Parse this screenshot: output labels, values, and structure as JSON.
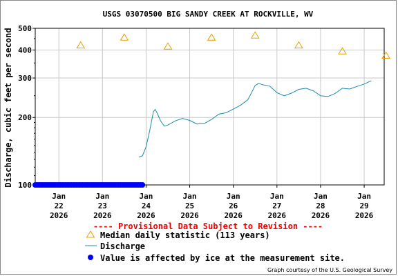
{
  "chart_data": {
    "type": "line",
    "title": "USGS 03070500 BIG SANDY CREEK AT ROCKVILLE, WV",
    "ylabel": "Discharge, cubic feet per second",
    "xlabel": "",
    "y_scale": "log",
    "ylim": [
      100,
      500
    ],
    "y_ticks": [
      {
        "value": 100,
        "label": "100"
      },
      {
        "value": 200,
        "label": "200"
      },
      {
        "value": 300,
        "label": "300"
      },
      {
        "value": 400,
        "label": "400"
      },
      {
        "value": 500,
        "label": "500"
      }
    ],
    "xlim": [
      "2026-01-21T11:00",
      "2026-01-29T11:00"
    ],
    "x_ticks": [
      {
        "value": "2026-01-22",
        "label1": "Jan",
        "label2": "22",
        "label3": "2026"
      },
      {
        "value": "2026-01-23",
        "label1": "Jan",
        "label2": "23",
        "label3": "2026"
      },
      {
        "value": "2026-01-24",
        "label1": "Jan",
        "label2": "24",
        "label3": "2026"
      },
      {
        "value": "2026-01-25",
        "label1": "Jan",
        "label2": "25",
        "label3": "2026"
      },
      {
        "value": "2026-01-26",
        "label1": "Jan",
        "label2": "26",
        "label3": "2026"
      },
      {
        "value": "2026-01-27",
        "label1": "Jan",
        "label2": "27",
        "label3": "2026"
      },
      {
        "value": "2026-01-28",
        "label1": "Jan",
        "label2": "28",
        "label3": "2026"
      },
      {
        "value": "2026-01-29",
        "label1": "Jan",
        "label2": "29",
        "label3": "2026"
      }
    ],
    "grid": true,
    "series": [
      {
        "name": "Median daily statistic (113 years)",
        "marker": "triangle",
        "color": "#e8a000",
        "points": [
          {
            "x": "2026-01-22T12:00",
            "y": 420
          },
          {
            "x": "2026-01-23T12:00",
            "y": 455
          },
          {
            "x": "2026-01-24T12:00",
            "y": 415
          },
          {
            "x": "2026-01-25T12:00",
            "y": 455
          },
          {
            "x": "2026-01-26T12:00",
            "y": 465
          },
          {
            "x": "2026-01-27T12:00",
            "y": 420
          },
          {
            "x": "2026-01-28T12:00",
            "y": 395
          },
          {
            "x": "2026-01-29T12:00",
            "y": 378
          }
        ]
      },
      {
        "name": "Discharge",
        "color": "#1a8ab0",
        "points": [
          {
            "x": "2026-01-23T20:00",
            "y": 133
          },
          {
            "x": "2026-01-23T22:00",
            "y": 135
          },
          {
            "x": "2026-01-24T00:00",
            "y": 148
          },
          {
            "x": "2026-01-24T02:00",
            "y": 175
          },
          {
            "x": "2026-01-24T04:00",
            "y": 212
          },
          {
            "x": "2026-01-24T05:00",
            "y": 217
          },
          {
            "x": "2026-01-24T06:00",
            "y": 210
          },
          {
            "x": "2026-01-24T08:00",
            "y": 193
          },
          {
            "x": "2026-01-24T10:00",
            "y": 183
          },
          {
            "x": "2026-01-24T12:00",
            "y": 185
          },
          {
            "x": "2026-01-24T16:00",
            "y": 193
          },
          {
            "x": "2026-01-24T20:00",
            "y": 198
          },
          {
            "x": "2026-01-25T00:00",
            "y": 194
          },
          {
            "x": "2026-01-25T04:00",
            "y": 187
          },
          {
            "x": "2026-01-25T08:00",
            "y": 188
          },
          {
            "x": "2026-01-25T12:00",
            "y": 196
          },
          {
            "x": "2026-01-25T16:00",
            "y": 207
          },
          {
            "x": "2026-01-25T20:00",
            "y": 210
          },
          {
            "x": "2026-01-26T00:00",
            "y": 218
          },
          {
            "x": "2026-01-26T04:00",
            "y": 227
          },
          {
            "x": "2026-01-26T08:00",
            "y": 240
          },
          {
            "x": "2026-01-26T10:00",
            "y": 258
          },
          {
            "x": "2026-01-26T12:00",
            "y": 278
          },
          {
            "x": "2026-01-26T14:00",
            "y": 284
          },
          {
            "x": "2026-01-26T16:00",
            "y": 280
          },
          {
            "x": "2026-01-26T20:00",
            "y": 276
          },
          {
            "x": "2026-01-27T00:00",
            "y": 258
          },
          {
            "x": "2026-01-27T04:00",
            "y": 250
          },
          {
            "x": "2026-01-27T08:00",
            "y": 257
          },
          {
            "x": "2026-01-27T12:00",
            "y": 267
          },
          {
            "x": "2026-01-27T16:00",
            "y": 270
          },
          {
            "x": "2026-01-27T20:00",
            "y": 263
          },
          {
            "x": "2026-01-28T00:00",
            "y": 250
          },
          {
            "x": "2026-01-28T04:00",
            "y": 248
          },
          {
            "x": "2026-01-28T08:00",
            "y": 256
          },
          {
            "x": "2026-01-28T12:00",
            "y": 270
          },
          {
            "x": "2026-01-28T16:00",
            "y": 268
          },
          {
            "x": "2026-01-28T20:00",
            "y": 275
          },
          {
            "x": "2026-01-29T00:00",
            "y": 282
          },
          {
            "x": "2026-01-29T04:00",
            "y": 292
          }
        ]
      },
      {
        "name": "Value is affected by ice at the measurement site.",
        "marker": "dot",
        "color": "#0000ff",
        "x_start": "2026-01-21T11:00",
        "x_end": "2026-01-23T22:00",
        "y": 100
      }
    ]
  },
  "footer": {
    "provisional": "---- Provisional Data Subject to Revision ----",
    "credit": "Graph courtesy of the U.S. Geological Survey"
  }
}
